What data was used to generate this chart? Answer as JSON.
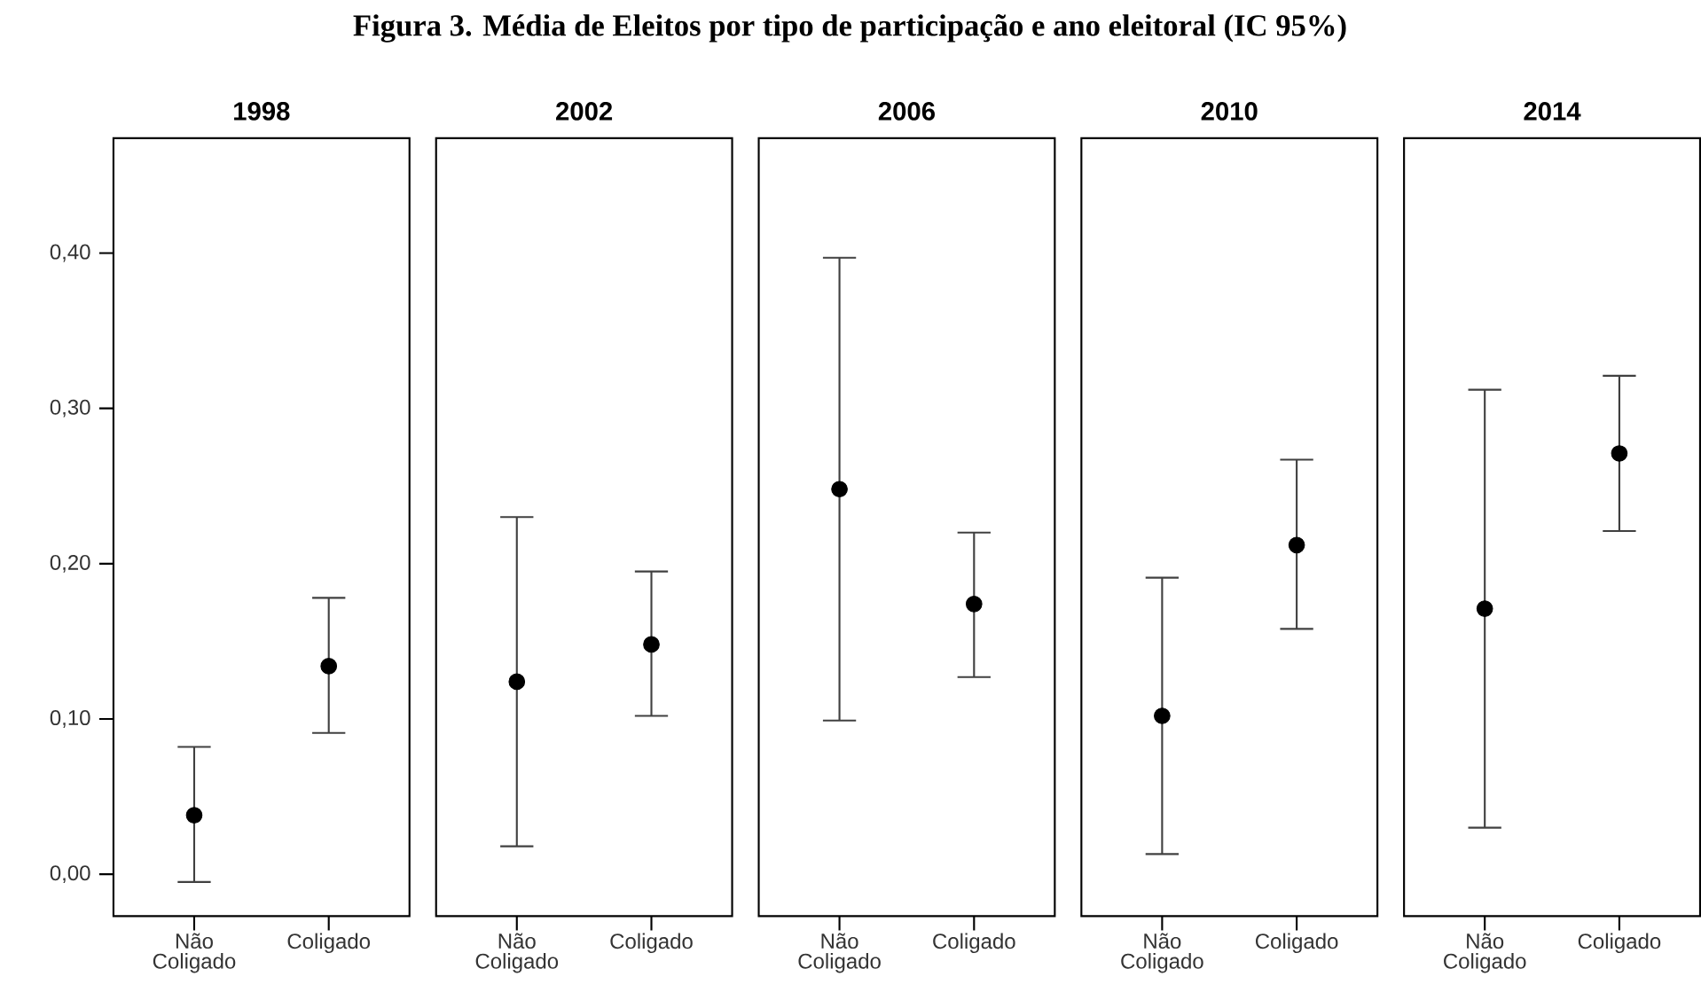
{
  "chart_data": [
    {
      "type": "scatter",
      "title": "1998",
      "annotations": [
        "Figura 3. Média de Eleitos por tipo de participação e ano eleitoral (IC 95%)"
      ],
      "categories": [
        "Não Coligado",
        "Coligado"
      ],
      "values": [
        0.038,
        0.134
      ],
      "errors": [
        [
          -0.005,
          0.082
        ],
        [
          0.091,
          0.178
        ]
      ],
      "color": "#000000",
      "marker": "circle",
      "ylim": [
        -0.027,
        0.474
      ],
      "yticks": [
        {
          "value": 0,
          "label": "0,00"
        },
        {
          "value": 0.1,
          "label": "0,10"
        },
        {
          "value": 0.2,
          "label": "0,20"
        },
        {
          "value": 0.3,
          "label": "0,30"
        },
        {
          "value": 0.4,
          "label": "0,40"
        }
      ]
    },
    {
      "type": "scatter",
      "title": "2002",
      "categories": [
        "Não Coligado",
        "Coligado"
      ],
      "values": [
        0.124,
        0.148
      ],
      "errors": [
        [
          0.018,
          0.23
        ],
        [
          0.102,
          0.195
        ]
      ],
      "color": "#000000",
      "marker": "circle",
      "ylim": [
        -0.027,
        0.474
      ],
      "tick_labels": "x"
    },
    {
      "type": "scatter",
      "title": "2006",
      "categories": [
        "Não Coligado",
        "Coligado"
      ],
      "values": [
        0.248,
        0.174
      ],
      "errors": [
        [
          0.099,
          0.397
        ],
        [
          0.127,
          0.22
        ]
      ],
      "color": "#000000",
      "marker": "circle",
      "ylim": [
        -0.027,
        0.474
      ],
      "tick_labels": "x"
    },
    {
      "type": "scatter",
      "title": "2010",
      "categories": [
        "Não Coligado",
        "Coligado"
      ],
      "values": [
        0.102,
        0.212
      ],
      "errors": [
        [
          0.013,
          0.191
        ],
        [
          0.158,
          0.267
        ]
      ],
      "color": "#000000",
      "marker": "circle",
      "ylim": [
        -0.027,
        0.474
      ],
      "tick_labels": "x"
    },
    {
      "type": "scatter",
      "title": "2014",
      "categories": [
        "Não Coligado",
        "Coligado"
      ],
      "values": [
        0.171,
        0.271
      ],
      "errors": [
        [
          0.03,
          0.312
        ],
        [
          0.221,
          0.321
        ]
      ],
      "color": "#000000",
      "marker": "circle",
      "ylim": [
        -0.027,
        0.474
      ],
      "tick_labels": "x"
    }
  ]
}
